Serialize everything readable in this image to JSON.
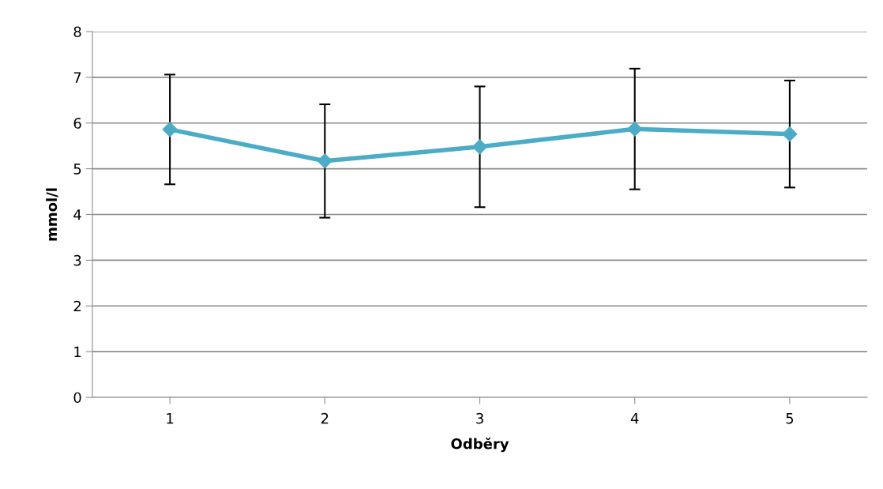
{
  "chart_data": {
    "type": "line",
    "xlabel": "Odběry",
    "ylabel": "mmol/l",
    "categories": [
      "1",
      "2",
      "3",
      "4",
      "5"
    ],
    "series": [
      {
        "color": "#4bacc6",
        "values": [
          5.86,
          5.17,
          5.48,
          5.87,
          5.76
        ],
        "errors": [
          1.2,
          1.24,
          1.32,
          1.32,
          1.17
        ]
      }
    ],
    "ylim": [
      0,
      8
    ],
    "yticks": [
      0,
      1,
      2,
      3,
      4,
      5,
      6,
      7,
      8
    ],
    "grid": "y",
    "marker": "diamond",
    "line_style": "solid"
  }
}
